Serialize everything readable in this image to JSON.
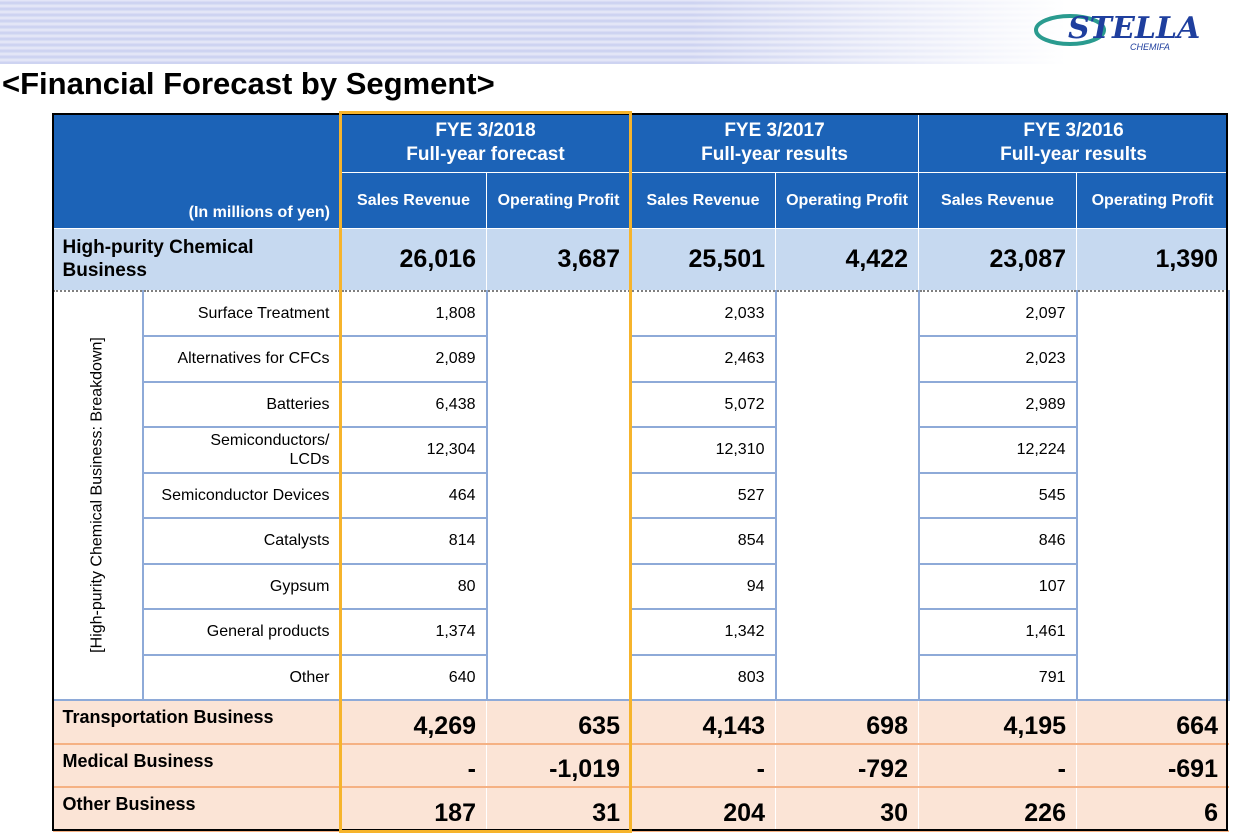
{
  "header": {
    "title": "<Financial Forecast by Segment>",
    "logo": "STELLA",
    "logo_sub": "CHEMIFA"
  },
  "table": {
    "unit": "(In millions of yen)",
    "periods": [
      {
        "title": "FYE 3/2018",
        "subtitle": "Full-year forecast"
      },
      {
        "title": "FYE 3/2017",
        "subtitle": "Full-year results"
      },
      {
        "title": "FYE 3/2016",
        "subtitle": "Full-year results"
      }
    ],
    "columns": [
      "Sales Revenue",
      "Operating Profit"
    ],
    "summary_row": {
      "label": "High-purity Chemical Business",
      "values": [
        "26,016",
        "3,687",
        "25,501",
        "4,422",
        "23,087",
        "1,390"
      ]
    },
    "breakdown_label": "[High-purity Chemical Business: Breakdown]",
    "breakdown": [
      {
        "label": "Surface Treatment",
        "values": [
          "1,808",
          "2,033",
          "2,097"
        ]
      },
      {
        "label": "Alternatives for CFCs",
        "values": [
          "2,089",
          "2,463",
          "2,023"
        ]
      },
      {
        "label": "Batteries",
        "values": [
          "6,438",
          "5,072",
          "2,989"
        ]
      },
      {
        "label": "Semiconductors/\nLCDs",
        "values": [
          "12,304",
          "12,310",
          "12,224"
        ]
      },
      {
        "label": "Semiconductor Devices",
        "values": [
          "464",
          "527",
          "545"
        ]
      },
      {
        "label": "Catalysts",
        "values": [
          "814",
          "854",
          "846"
        ]
      },
      {
        "label": "Gypsum",
        "values": [
          "80",
          "94",
          "107"
        ]
      },
      {
        "label": "General products",
        "values": [
          "1,374",
          "1,342",
          "1,461"
        ]
      },
      {
        "label": "Other",
        "values": [
          "640",
          "803",
          "791"
        ]
      }
    ],
    "other_rows": [
      {
        "label": "Transportation Business",
        "values": [
          "4,269",
          "635",
          "4,143",
          "698",
          "4,195",
          "664"
        ]
      },
      {
        "label": "Medical Business",
        "values": [
          "-",
          "-1,019",
          "-",
          "-792",
          "-",
          "-691"
        ]
      },
      {
        "label": "Other Business",
        "values": [
          "187",
          "31",
          "204",
          "30",
          "226",
          "6"
        ]
      }
    ]
  }
}
